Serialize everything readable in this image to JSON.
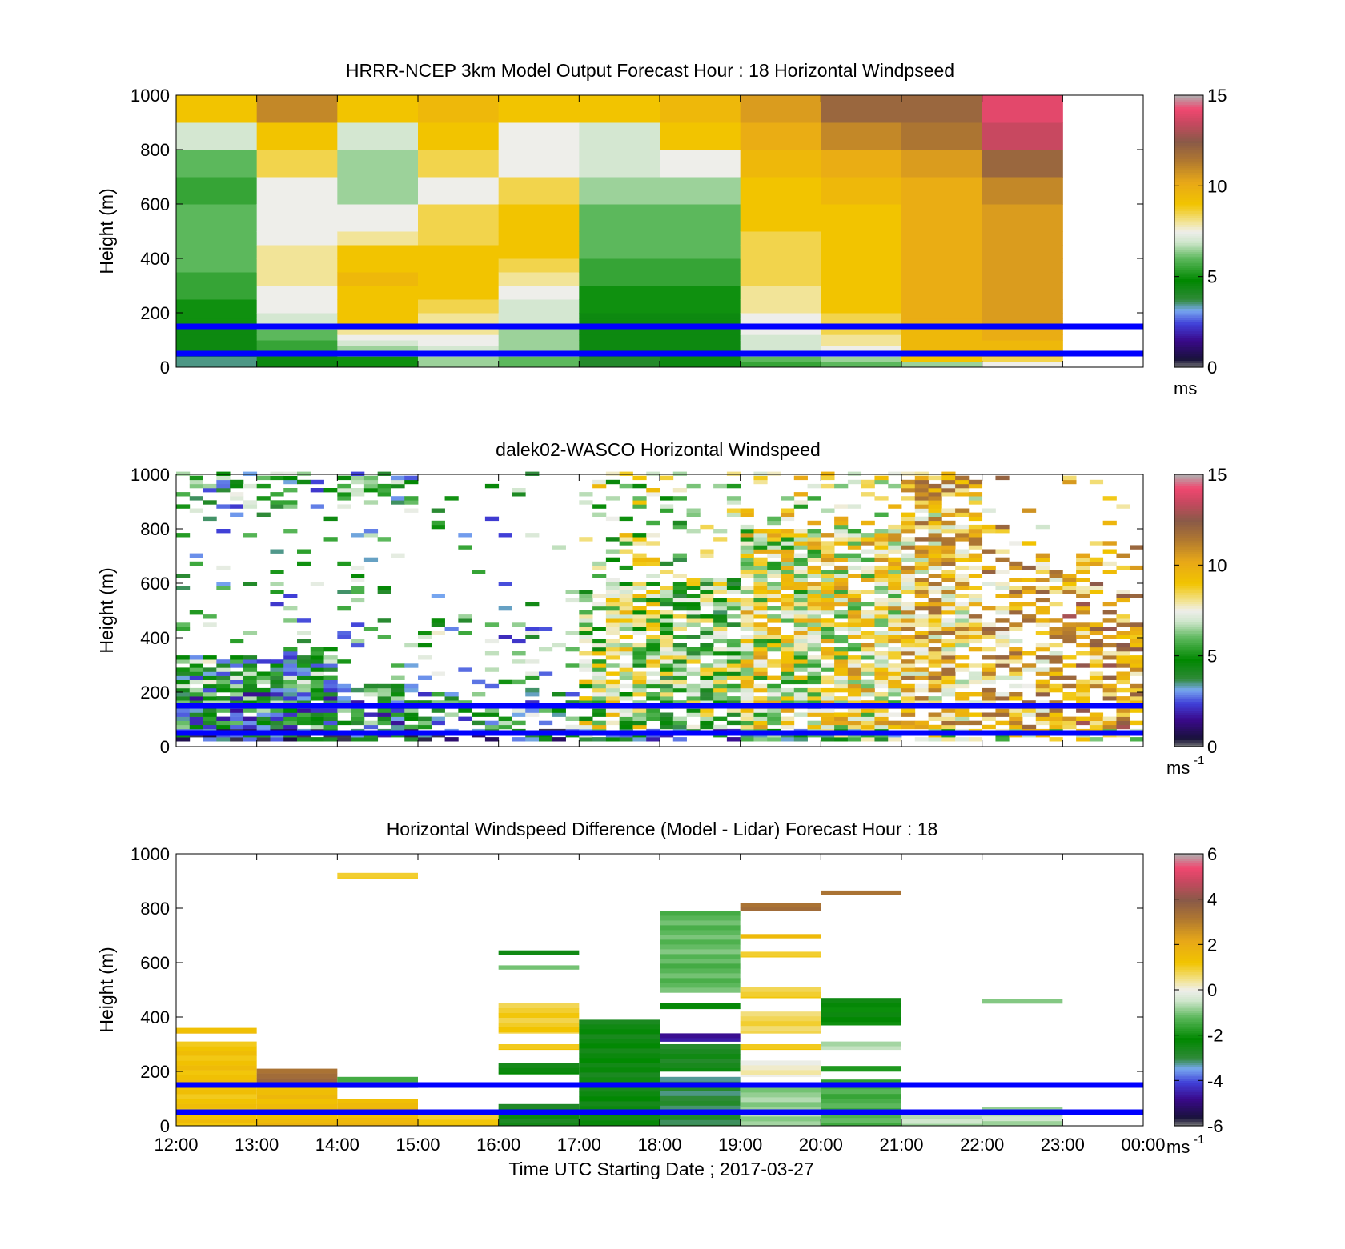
{
  "chart_data": [
    {
      "type": "heatmap",
      "title": "HRRR-NCEP 3km Model Output   Forecast Hour : 18 Horizontal Windpseed",
      "ylabel": "Height (m)",
      "ylim": [
        0,
        1000
      ],
      "yticks": [
        "0",
        "200",
        "400",
        "600",
        "800",
        "1000"
      ],
      "xlim": [
        "12:00",
        "00:00"
      ],
      "colorbar": {
        "range": [
          0,
          15
        ],
        "ticks": [
          "0",
          "5",
          "10",
          "15"
        ],
        "unit": "ms",
        "unit_sup": ""
      },
      "reference_lines_height_m": [
        150,
        50
      ],
      "time_columns": [
        "12:00",
        "13:00",
        "14:00",
        "15:00",
        "16:00",
        "17:00",
        "18:00",
        "19:00",
        "20:00",
        "21:00",
        "22:00"
      ],
      "height_levels_m": [
        20,
        40,
        60,
        80,
        100,
        120,
        140,
        160,
        180,
        200,
        250,
        300,
        350,
        400,
        450,
        500,
        600,
        700,
        800,
        900,
        1000
      ],
      "windspeed_ms": [
        [
          3.5,
          4.5,
          5.0,
          6.5,
          6.0,
          4.0,
          4.5,
          5.5,
          6.0,
          6.5,
          7.5
        ],
        [
          3.5,
          4.5,
          5.0,
          6.5,
          6.0,
          4.0,
          4.5,
          6.0,
          6.5,
          9.0,
          8.5
        ],
        [
          4.5,
          5.0,
          6.0,
          7.0,
          6.5,
          4.5,
          4.5,
          6.5,
          7.0,
          9.5,
          9.5
        ],
        [
          4.5,
          5.5,
          6.5,
          7.0,
          6.5,
          4.5,
          4.5,
          7.0,
          7.5,
          9.5,
          9.5
        ],
        [
          4.5,
          5.5,
          7.0,
          7.5,
          6.5,
          4.5,
          4.5,
          7.0,
          8.0,
          9.5,
          9.5
        ],
        [
          4.5,
          6.0,
          7.5,
          7.5,
          6.5,
          4.5,
          4.5,
          7.0,
          8.0,
          9.5,
          10.0
        ],
        [
          4.5,
          6.0,
          8.0,
          8.0,
          6.5,
          4.5,
          4.5,
          7.5,
          8.5,
          9.5,
          10.0
        ],
        [
          4.5,
          6.5,
          8.5,
          8.0,
          6.5,
          4.5,
          4.5,
          7.5,
          8.5,
          10.0,
          10.5
        ],
        [
          5.0,
          7.0,
          9.0,
          8.0,
          7.0,
          4.5,
          4.5,
          7.5,
          8.5,
          10.0,
          10.5
        ],
        [
          5.0,
          7.0,
          9.0,
          8.0,
          7.0,
          4.5,
          4.5,
          7.5,
          8.5,
          10.0,
          10.5
        ],
        [
          5.0,
          7.5,
          9.0,
          8.5,
          7.0,
          5.0,
          5.0,
          8.0,
          9.0,
          10.0,
          10.5
        ],
        [
          5.5,
          7.5,
          9.0,
          9.0,
          7.5,
          5.0,
          5.0,
          8.0,
          9.0,
          10.0,
          10.5
        ],
        [
          5.5,
          8.0,
          9.5,
          9.0,
          8.0,
          5.5,
          5.5,
          8.5,
          9.0,
          10.0,
          10.5
        ],
        [
          6.0,
          8.0,
          9.0,
          9.0,
          8.5,
          5.5,
          5.5,
          8.5,
          9.0,
          10.0,
          10.5
        ],
        [
          6.0,
          8.0,
          9.0,
          9.0,
          9.0,
          6.0,
          6.0,
          8.5,
          9.0,
          10.0,
          10.5
        ],
        [
          6.0,
          7.5,
          8.0,
          8.5,
          9.0,
          6.0,
          6.0,
          8.5,
          9.0,
          10.0,
          10.5
        ],
        [
          6.0,
          7.5,
          7.5,
          8.5,
          9.0,
          6.0,
          6.0,
          9.0,
          9.0,
          10.0,
          10.5
        ],
        [
          5.5,
          7.5,
          6.5,
          7.5,
          8.5,
          6.5,
          6.5,
          9.0,
          9.5,
          10.0,
          11.0
        ],
        [
          6.0,
          8.5,
          6.5,
          8.5,
          7.5,
          7.0,
          7.5,
          9.5,
          10.0,
          10.5,
          12.0
        ],
        [
          7.0,
          9.0,
          7.0,
          9.0,
          7.5,
          7.0,
          9.0,
          10.0,
          11.0,
          11.5,
          13.5
        ],
        [
          9.0,
          11.0,
          9.0,
          9.5,
          9.0,
          9.0,
          9.5,
          10.5,
          12.0,
          12.0,
          14.0
        ]
      ]
    },
    {
      "type": "heatmap",
      "title": "dalek02-WASCO  Horizontal Windspeed",
      "ylabel": "Height (m)",
      "ylim": [
        0,
        1000
      ],
      "yticks": [
        "0",
        "200",
        "400",
        "600",
        "800",
        "1000"
      ],
      "xlim": [
        "12:00",
        "00:00"
      ],
      "colorbar": {
        "range": [
          0,
          15
        ],
        "ticks": [
          "0",
          "5",
          "10",
          "15"
        ],
        "unit": "ms",
        "unit_sup": "-1"
      },
      "reference_lines_height_m": [
        150,
        50
      ],
      "note_on_values": "scattered lidar retrievals; sampled per 10-minute column and 15 m gate",
      "columns_per_hour": 6,
      "gate_m": 15
    },
    {
      "type": "heatmap",
      "title": "Horizontal Windspeed Difference (Model - Lidar) Forecast Hour : 18",
      "ylabel": "Height (m)",
      "xlabel": "Time UTC  Starting Date ; 2017-03-27",
      "ylim": [
        0,
        1000
      ],
      "yticks": [
        "0",
        "200",
        "400",
        "600",
        "800",
        "1000"
      ],
      "xticks": [
        "12:00",
        "13:00",
        "14:00",
        "15:00",
        "16:00",
        "17:00",
        "18:00",
        "19:00",
        "20:00",
        "21:00",
        "22:00",
        "23:00",
        "00:00"
      ],
      "colorbar": {
        "range": [
          -6,
          6
        ],
        "ticks": [
          "-6",
          "-4",
          "-2",
          "0",
          "2",
          "4",
          "6"
        ],
        "unit": "ms",
        "unit_sup": "-1"
      },
      "reference_lines_height_m": [
        150,
        50
      ],
      "segments": [
        {
          "t0": "12:00",
          "t1": "13:00",
          "z0": 0,
          "z1": 310,
          "value": 1.3
        },
        {
          "t0": "12:00",
          "t1": "13:00",
          "z0": 340,
          "z1": 360,
          "value": 1.6
        },
        {
          "t0": "13:00",
          "t1": "14:00",
          "z0": 0,
          "z1": 150,
          "value": 1.5
        },
        {
          "t0": "13:00",
          "t1": "14:00",
          "z0": 150,
          "z1": 210,
          "value": 3.5
        },
        {
          "t0": "14:00",
          "t1": "15:00",
          "z0": 0,
          "z1": 100,
          "value": 1.6
        },
        {
          "t0": "14:00",
          "t1": "15:00",
          "z0": 140,
          "z1": 180,
          "value": -1.2
        },
        {
          "t0": "14:00",
          "t1": "15:00",
          "z0": 910,
          "z1": 930,
          "value": 1.2
        },
        {
          "t0": "15:00",
          "t1": "16:00",
          "z0": 0,
          "z1": 40,
          "value": 1.2
        },
        {
          "t0": "16:00",
          "t1": "17:00",
          "z0": 0,
          "z1": 80,
          "value": -2.5
        },
        {
          "t0": "16:00",
          "t1": "17:00",
          "z0": 190,
          "z1": 230,
          "value": -2.3
        },
        {
          "t0": "16:00",
          "t1": "17:00",
          "z0": 280,
          "z1": 300,
          "value": 1.3
        },
        {
          "t0": "16:00",
          "t1": "17:00",
          "z0": 340,
          "z1": 450,
          "value": 1.0
        },
        {
          "t0": "16:00",
          "t1": "17:00",
          "z0": 575,
          "z1": 590,
          "value": -0.8
        },
        {
          "t0": "16:00",
          "t1": "17:00",
          "z0": 630,
          "z1": 645,
          "value": -2.2
        },
        {
          "t0": "17:00",
          "t1": "18:00",
          "z0": 0,
          "z1": 390,
          "value": -2.4
        },
        {
          "t0": "18:00",
          "t1": "19:00",
          "z0": 0,
          "z1": 180,
          "value": -3.0
        },
        {
          "t0": "18:00",
          "t1": "19:00",
          "z0": 200,
          "z1": 300,
          "value": -2.6
        },
        {
          "t0": "18:00",
          "t1": "19:00",
          "z0": 310,
          "z1": 340,
          "value": -4.5
        },
        {
          "t0": "18:00",
          "t1": "19:00",
          "z0": 430,
          "z1": 450,
          "value": -2.0
        },
        {
          "t0": "18:00",
          "t1": "19:00",
          "z0": 490,
          "z1": 790,
          "value": -1.2
        },
        {
          "t0": "19:00",
          "t1": "20:00",
          "z0": 0,
          "z1": 140,
          "value": -0.8
        },
        {
          "t0": "19:00",
          "t1": "20:00",
          "z0": 180,
          "z1": 240,
          "value": 0.2
        },
        {
          "t0": "19:00",
          "t1": "20:00",
          "z0": 280,
          "z1": 300,
          "value": 1.3
        },
        {
          "t0": "19:00",
          "t1": "20:00",
          "z0": 340,
          "z1": 420,
          "value": 0.8
        },
        {
          "t0": "19:00",
          "t1": "20:00",
          "z0": 470,
          "z1": 510,
          "value": 1.0
        },
        {
          "t0": "19:00",
          "t1": "20:00",
          "z0": 620,
          "z1": 640,
          "value": 1.2
        },
        {
          "t0": "19:00",
          "t1": "20:00",
          "z0": 690,
          "z1": 705,
          "value": 1.8
        },
        {
          "t0": "19:00",
          "t1": "20:00",
          "z0": 790,
          "z1": 820,
          "value": 3.5
        },
        {
          "t0": "20:00",
          "t1": "21:00",
          "z0": 0,
          "z1": 170,
          "value": -1.4
        },
        {
          "t0": "20:00",
          "t1": "21:00",
          "z0": 200,
          "z1": 220,
          "value": -1.6
        },
        {
          "t0": "20:00",
          "t1": "21:00",
          "z0": 280,
          "z1": 310,
          "value": -0.5
        },
        {
          "t0": "20:00",
          "t1": "21:00",
          "z0": 370,
          "z1": 470,
          "value": -2.2
        },
        {
          "t0": "20:00",
          "t1": "21:00",
          "z0": 850,
          "z1": 865,
          "value": 3.5
        },
        {
          "t0": "21:00",
          "t1": "22:00",
          "z0": 0,
          "z1": 60,
          "value": -0.6
        },
        {
          "t0": "22:00",
          "t1": "23:00",
          "z0": 0,
          "z1": 70,
          "value": -0.6
        },
        {
          "t0": "22:00",
          "t1": "23:00",
          "z0": 450,
          "z1": 465,
          "value": -0.7
        }
      ]
    }
  ]
}
